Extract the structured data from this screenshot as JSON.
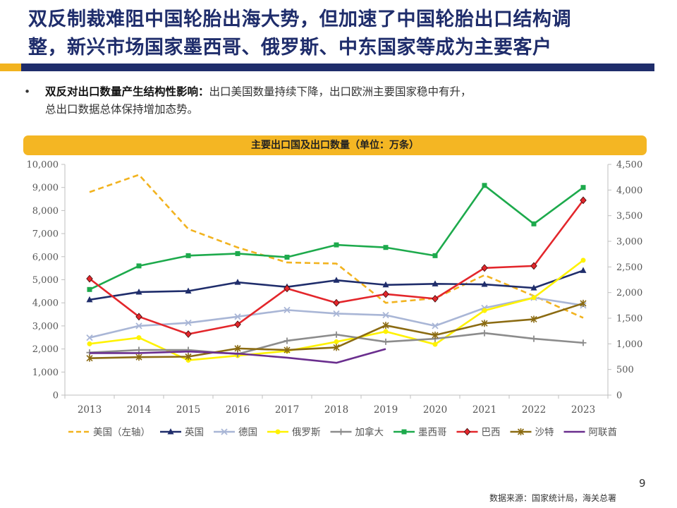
{
  "header": {
    "title_line1": "双反制裁难阻中国轮胎出海大势，但加速了中国轮胎出口结构调",
    "title_line2": "整，新兴市场国家墨西哥、俄罗斯、中东国家等成为主要客户"
  },
  "bullet": {
    "marker": "•",
    "bold": "双反对出口数量产生结构性影响：",
    "line1_rest": "出口美国数量持续下降，出口欧洲主要国家稳中有升，",
    "line2": "总出口数据总体保持增加态势。"
  },
  "chart_banner": "主要出口国及出口数量（单位：万条）",
  "chart_data": {
    "type": "line",
    "title": "主要出口国及出口数量（单位：万条）",
    "categories": [
      "2013",
      "2014",
      "2015",
      "2016",
      "2017",
      "2018",
      "2019",
      "2020",
      "2021",
      "2022",
      "2023"
    ],
    "left_axis": {
      "min": 0,
      "max": 10000,
      "ticks": [
        0,
        1000,
        2000,
        3000,
        4000,
        5000,
        6000,
        7000,
        8000,
        9000,
        10000
      ],
      "tick_labels": [
        "0",
        "1,000",
        "2,000",
        "3,000",
        "4,000",
        "5,000",
        "6,000",
        "7,000",
        "8,000",
        "9,000",
        "10,000"
      ]
    },
    "right_axis": {
      "min": 0,
      "max": 4500,
      "ticks": [
        0,
        500,
        1000,
        1500,
        2000,
        2500,
        3000,
        3500,
        4000,
        4500
      ],
      "tick_labels": [
        "0",
        "500",
        "1,000",
        "1,500",
        "2,000",
        "2,500",
        "3,000",
        "3,500",
        "4,000",
        "4,500"
      ]
    },
    "legend_position": "bottom",
    "series": [
      {
        "name": "美国（左轴）",
        "axis": "left",
        "color": "#F2B31F",
        "dash": true,
        "marker": "none",
        "values": [
          8800,
          9550,
          7200,
          6400,
          5750,
          5700,
          4000,
          4200,
          5200,
          4300,
          3350
        ]
      },
      {
        "name": "英国",
        "axis": "right",
        "color": "#1F2D6B",
        "marker": "triangle",
        "values": [
          1860,
          2010,
          2030,
          2200,
          2110,
          2240,
          2150,
          2170,
          2160,
          2090,
          2430
        ]
      },
      {
        "name": "德国",
        "axis": "right",
        "color": "#A9B6D6",
        "marker": "x",
        "values": [
          1120,
          1350,
          1410,
          1530,
          1660,
          1590,
          1560,
          1350,
          1700,
          1900,
          1750
        ]
      },
      {
        "name": "俄罗斯",
        "axis": "right",
        "color": "#FFF200",
        "marker": "circle",
        "values": [
          1000,
          1120,
          680,
          770,
          860,
          1040,
          1240,
          990,
          1650,
          1900,
          2630
        ]
      },
      {
        "name": "加拿大",
        "axis": "right",
        "color": "#8C8C8C",
        "marker": "plus",
        "values": [
          830,
          880,
          880,
          800,
          1060,
          1180,
          1040,
          1100,
          1210,
          1100,
          1020
        ]
      },
      {
        "name": "墨西哥",
        "axis": "right",
        "color": "#1DAA4C",
        "marker": "square",
        "values": [
          2060,
          2520,
          2720,
          2760,
          2690,
          2930,
          2880,
          2720,
          4090,
          3340,
          4050
        ]
      },
      {
        "name": "巴西",
        "axis": "right",
        "color": "#E3262B",
        "marker": "diamond",
        "values": [
          2270,
          1530,
          1190,
          1380,
          2080,
          1800,
          1970,
          1880,
          2480,
          2520,
          3800
        ]
      },
      {
        "name": "沙特",
        "axis": "right",
        "color": "#8B6B12",
        "marker": "asterisk",
        "values": [
          720,
          740,
          750,
          910,
          880,
          930,
          1360,
          1170,
          1400,
          1480,
          1790
        ]
      },
      {
        "name": "阿联酋",
        "axis": "right",
        "color": "#6A2E8E",
        "marker": "none",
        "values": [
          820,
          820,
          850,
          810,
          730,
          630,
          900,
          null,
          null,
          null,
          null
        ]
      }
    ]
  },
  "footer": {
    "page_number": "9",
    "source": "数据来源：国家统计局，海关总署"
  }
}
